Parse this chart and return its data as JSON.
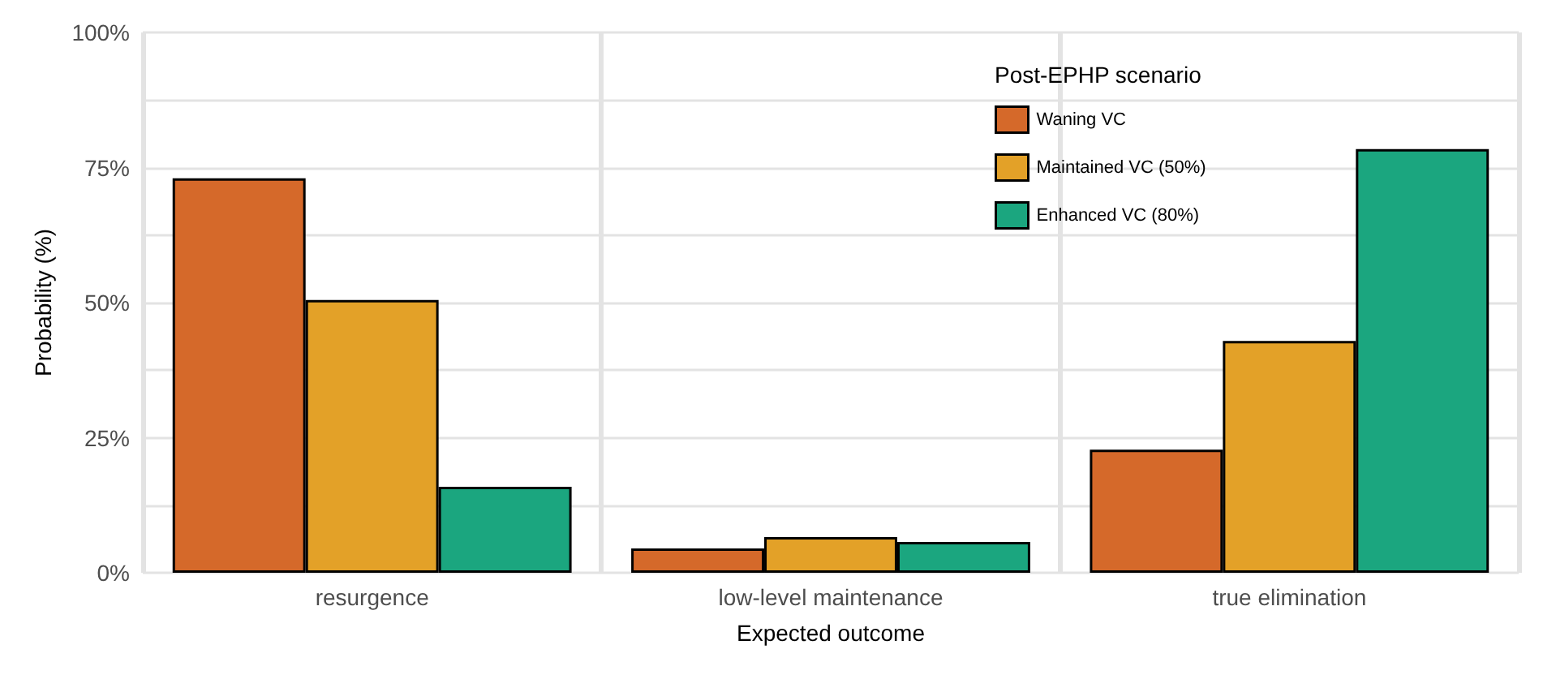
{
  "chart_data": {
    "type": "bar",
    "xlabel": "Expected outcome",
    "ylabel": "Probability (%)",
    "legend_title": "Post-EPHP scenario",
    "categories": [
      "resurgence",
      "low-level maintenance",
      "true elimination"
    ],
    "series": [
      {
        "name": "Waning VC",
        "color": "#d5692a",
        "values": [
          73.0,
          4.5,
          22.8
        ]
      },
      {
        "name": "Maintained VC (50%)",
        "color": "#e3a128",
        "values": [
          50.5,
          6.6,
          42.9
        ]
      },
      {
        "name": "Enhanced VC (80%)",
        "color": "#1ba67f",
        "values": [
          15.9,
          5.7,
          78.4
        ]
      }
    ],
    "ylim": [
      0,
      100
    ],
    "yticks": [
      {
        "value": 0,
        "label": "0%"
      },
      {
        "value": 12.5,
        "label": null
      },
      {
        "value": 25,
        "label": "25%"
      },
      {
        "value": 37.5,
        "label": null
      },
      {
        "value": 50,
        "label": "50%"
      },
      {
        "value": 62.5,
        "label": null
      },
      {
        "value": 75,
        "label": "75%"
      },
      {
        "value": 87.5,
        "label": null
      },
      {
        "value": 100,
        "label": "100%"
      }
    ],
    "grid": true,
    "legend": "top right"
  }
}
